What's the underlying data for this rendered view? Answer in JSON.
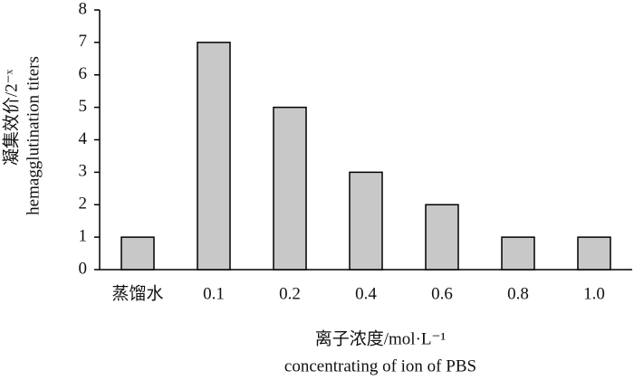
{
  "chart_data": {
    "type": "bar",
    "ylabel": [
      "凝集效价/2⁻ˣ",
      "hemagglutination titers"
    ],
    "xlabel": [
      "离子浓度/mol·L⁻¹",
      "concentrating of ion of PBS"
    ],
    "categories": [
      "蒸馏水",
      "0.1",
      "0.2",
      "0.4",
      "0.6",
      "0.8",
      "1.0"
    ],
    "values": [
      1,
      7,
      5,
      3,
      2,
      1,
      1
    ],
    "color": "#c8c8c8",
    "ylim": [
      0,
      8
    ],
    "yticks": [
      0,
      1,
      2,
      3,
      4,
      5,
      6,
      7,
      8
    ],
    "grid": false
  }
}
